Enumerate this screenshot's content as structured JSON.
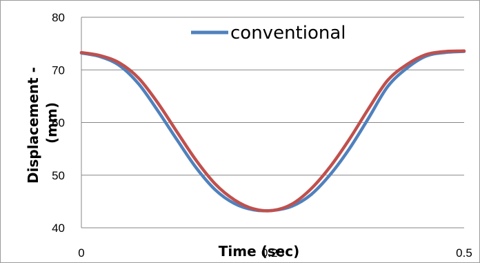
{
  "chart_data": {
    "type": "line",
    "title": "",
    "xlabel": "Time (sec)",
    "ylabel": "Displacement - (mm)",
    "ylabel_lines": [
      "Displacement -",
      "(mm)"
    ],
    "xlim": [
      0,
      0.5
    ],
    "ylim": [
      40,
      80
    ],
    "x_ticks": [
      0,
      0.25,
      0.5
    ],
    "x_tick_labels": [
      "0",
      "0.25",
      "0.5"
    ],
    "y_ticks": [
      40,
      50,
      60,
      70,
      80
    ],
    "y_tick_labels": [
      "40",
      "50",
      "60",
      "70",
      "80"
    ],
    "grid": "horizontal",
    "legend": "top",
    "series": [
      {
        "name": "conventional",
        "color": "#4F81BD",
        "x": [
          0,
          0.025,
          0.05,
          0.075,
          0.1,
          0.125,
          0.15,
          0.175,
          0.2,
          0.225,
          0.25,
          0.275,
          0.3,
          0.325,
          0.35,
          0.375,
          0.4,
          0.425,
          0.45,
          0.475,
          0.5
        ],
        "y": [
          73.2,
          72.5,
          70.8,
          67.3,
          62.2,
          56.7,
          51.4,
          47.2,
          44.6,
          43.4,
          43.3,
          44.1,
          46.3,
          50.1,
          55.0,
          60.8,
          66.8,
          70.3,
          72.6,
          73.3,
          73.5
        ]
      },
      {
        "name": "",
        "color": "#C0504D",
        "x": [
          0,
          0.025,
          0.05,
          0.075,
          0.1,
          0.125,
          0.15,
          0.175,
          0.2,
          0.225,
          0.25,
          0.275,
          0.3,
          0.325,
          0.35,
          0.375,
          0.4,
          0.425,
          0.45,
          0.475,
          0.5
        ],
        "y": [
          73.3,
          72.7,
          71.3,
          68.4,
          63.7,
          58.2,
          52.8,
          48.3,
          45.3,
          43.6,
          43.3,
          44.5,
          47.4,
          51.6,
          56.8,
          62.6,
          68.0,
          71.0,
          72.9,
          73.5,
          73.6
        ]
      }
    ]
  }
}
